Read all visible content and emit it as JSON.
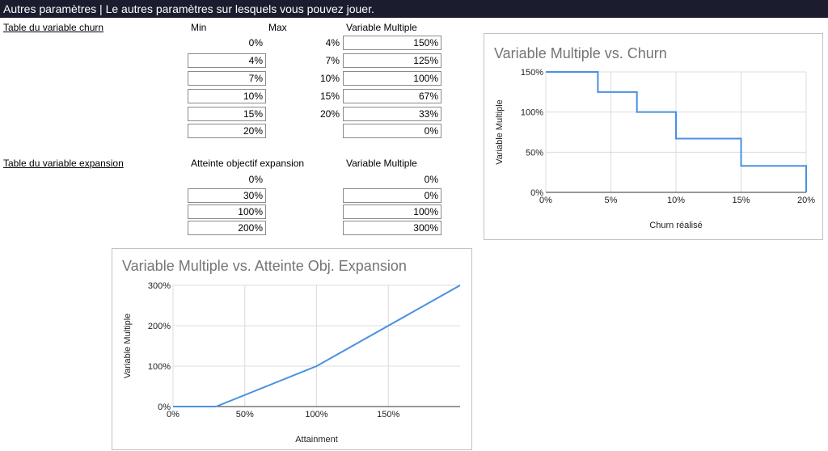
{
  "header": {
    "title": "Autres paramètres | Le autres paramètres sur lesquels vous pouvez jouer."
  },
  "churn_table": {
    "label": "Table du variable churn",
    "col_min": "Min",
    "col_max": "Max",
    "col_multiple": "Variable Multiple",
    "rows": [
      {
        "min": "0%",
        "max": "4%",
        "multiple": "150%"
      },
      {
        "min": "4%",
        "max": "7%",
        "multiple": "125%"
      },
      {
        "min": "7%",
        "max": "10%",
        "multiple": "100%"
      },
      {
        "min": "10%",
        "max": "15%",
        "multiple": "67%"
      },
      {
        "min": "15%",
        "max": "20%",
        "multiple": "33%"
      },
      {
        "min": "20%",
        "max": "",
        "multiple": "0%"
      }
    ]
  },
  "expansion_table": {
    "label": "Table du variable expansion",
    "col_attainment": "Atteinte objectif expansion",
    "col_multiple": "Variable Multiple",
    "rows": [
      {
        "attainment": "0%",
        "multiple": "0%"
      },
      {
        "attainment": "30%",
        "multiple": "0%"
      },
      {
        "attainment": "100%",
        "multiple": "100%"
      },
      {
        "attainment": "200%",
        "multiple": "300%"
      }
    ]
  },
  "chart_data": [
    {
      "type": "line",
      "step": true,
      "title": "Variable Multiple vs. Churn",
      "xlabel": "Churn réalisé",
      "ylabel": "Variable Multiple",
      "x": [
        0,
        4,
        7,
        10,
        15,
        20
      ],
      "series": [
        {
          "values": [
            150,
            125,
            100,
            67,
            33,
            0
          ]
        }
      ],
      "xlim": [
        0,
        20
      ],
      "ylim": [
        0,
        150
      ],
      "xticks": [
        0,
        5,
        10,
        15,
        20
      ],
      "xtick_labels": [
        "0%",
        "5%",
        "10%",
        "15%",
        "20%"
      ],
      "yticks": [
        0,
        50,
        100,
        150
      ],
      "ytick_labels": [
        "0%",
        "50%",
        "100%",
        "150%"
      ],
      "grid": true,
      "color": "#4a90e2"
    },
    {
      "type": "line",
      "title": "Variable Multiple vs. Atteinte Obj. Expansion",
      "xlabel": "Attainment",
      "ylabel": "Variable Multiple",
      "x": [
        0,
        30,
        100,
        200
      ],
      "series": [
        {
          "values": [
            0,
            0,
            100,
            300
          ]
        }
      ],
      "xlim": [
        0,
        200
      ],
      "ylim": [
        0,
        300
      ],
      "xticks": [
        0,
        50,
        100,
        150
      ],
      "xtick_labels": [
        "0%",
        "50%",
        "100%",
        "150%"
      ],
      "yticks": [
        0,
        100,
        200,
        300
      ],
      "ytick_labels": [
        "0%",
        "100%",
        "200%",
        "300%"
      ],
      "grid": true,
      "color": "#4a90e2"
    }
  ]
}
